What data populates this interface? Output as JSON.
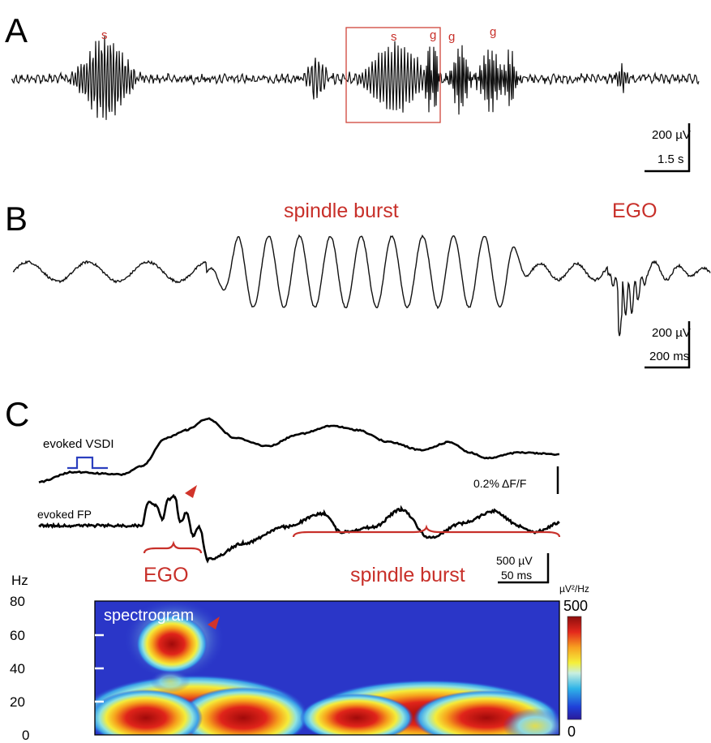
{
  "chart_data": [
    {
      "type": "line",
      "panel": "A",
      "annotations": [
        "s",
        "s",
        "g",
        "g",
        "g"
      ],
      "scale_bar": {
        "amplitude": "200 µV",
        "time": "1.5 s"
      }
    },
    {
      "type": "line",
      "panel": "B",
      "annotations": [
        "spindle burst",
        "EGO"
      ],
      "scale_bar": {
        "amplitude": "200 µV",
        "time": "200 ms"
      }
    },
    {
      "type": "line",
      "panel": "C",
      "series": [
        {
          "name": "evoked VSDI",
          "scale": "0.2% ΔF/F"
        },
        {
          "name": "evoked FP",
          "scale_amplitude": "500 µV",
          "scale_time": "50 ms"
        }
      ],
      "annotations": [
        "EGO",
        "spindle burst"
      ]
    },
    {
      "type": "heatmap",
      "title": "spectrogram",
      "ylabel": "Hz",
      "ylim": [
        0,
        80
      ],
      "yticks": [
        0,
        20,
        40,
        60,
        80
      ],
      "colorbar": {
        "label": "µV²/Hz",
        "min": 0,
        "max": 500
      },
      "hotspots": [
        {
          "x_fraction": 0.16,
          "freq_hz": 55,
          "level": 500
        },
        {
          "x_fraction": 0.22,
          "freq_hz": 12,
          "level": 500
        },
        {
          "x_fraction": 0.66,
          "freq_hz": 12,
          "level": 500
        }
      ]
    }
  ],
  "labels": {
    "A": "A",
    "B": "B",
    "C": "C",
    "a_s1": "s",
    "a_s2": "s",
    "a_g1": "g",
    "a_g2": "g",
    "a_g3": "g",
    "a_amp": "200 µV",
    "a_time": "1.5 s",
    "b_spindle": "spindle burst",
    "b_ego": "EGO",
    "b_amp": "200 µV",
    "b_time": "200 ms",
    "c_vsdi": "evoked VSDI",
    "c_fp": "evoked FP",
    "c_vsdi_scale": "0.2% ΔF/F",
    "c_fp_amp": "500 µV",
    "c_fp_time": "50 ms",
    "c_ego": "EGO",
    "c_spindle": "spindle burst",
    "hz": "Hz",
    "spectrogram": "spectrogram",
    "cb_unit": "µV²/Hz",
    "cb_max": "500",
    "cb_min": "0",
    "y80": "80",
    "y60": "60",
    "y40": "40",
    "y20": "20",
    "y0": "0"
  }
}
